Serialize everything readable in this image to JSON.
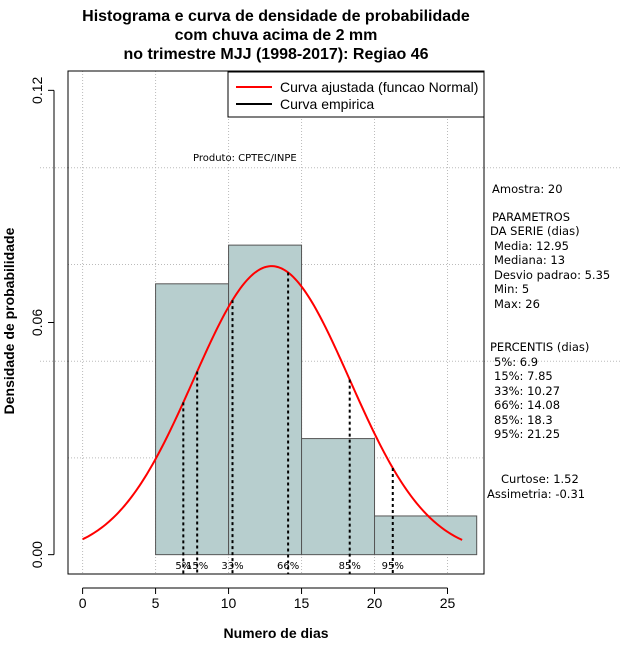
{
  "chart_data": {
    "type": "bar",
    "title_lines": [
      "Histograma e curva de densidade de probabilidade",
      "com chuva acima de 2 mm",
      "no trimestre MJJ (1998-2017): Regiao 46"
    ],
    "xlabel": "Numero de dias",
    "ylabel": "Densidade de probabilidade",
    "xlim": [
      -1,
      27.5
    ],
    "ylim": [
      -0.005,
      0.125
    ],
    "x_ticks": [
      0,
      5,
      10,
      15,
      20,
      25
    ],
    "y_ticks": [
      0.0,
      0.06,
      0.12
    ],
    "y_tick_labels": [
      "0.00",
      "0.06",
      "0.12"
    ],
    "bins": [
      {
        "start": 5,
        "end": 10,
        "density": 0.07
      },
      {
        "start": 10,
        "end": 15,
        "density": 0.08
      },
      {
        "start": 15,
        "end": 20,
        "density": 0.03
      },
      {
        "start": 20,
        "end": 27,
        "density": 0.01
      }
    ],
    "normal_fit": {
      "mean": 12.95,
      "sd": 5.35,
      "x_from": 0,
      "x_to": 26
    },
    "percentiles": [
      {
        "label": "5%",
        "value": 6.9
      },
      {
        "label": "15%",
        "value": 7.85
      },
      {
        "label": "33%",
        "value": 10.27
      },
      {
        "label": "66%",
        "value": 14.08
      },
      {
        "label": "85%",
        "value": 18.3
      },
      {
        "label": "95%",
        "value": 21.25
      }
    ],
    "legend": [
      {
        "label": "Curva ajustada (funcao Normal)",
        "color": "#ff0000"
      },
      {
        "label": "Curva empirica",
        "color": "#000000"
      }
    ],
    "legend_position": "top-right",
    "annotation": "Produto: CPTEC/INPE",
    "colors": {
      "bar_fill": "#b7cece",
      "bar_stroke": "#555555",
      "curve": "#ff0000",
      "grid": "#bbbbbb"
    },
    "side_panel": [
      "Amostra: 20",
      " PARAMETROS",
      "DA SERIE (dias)",
      " Media: 12.95",
      " Mediana: 13",
      " Desvio padrao: 5.35",
      " Min: 5",
      " Max: 26",
      "PERCENTIS (dias)",
      " 5%: 6.9",
      " 15%: 7.85",
      " 33%: 10.27",
      " 66%: 14.08",
      " 85%: 18.3",
      " 95%: 21.25",
      "Curtose: 1.52",
      "Assimetria: -0.31"
    ]
  }
}
